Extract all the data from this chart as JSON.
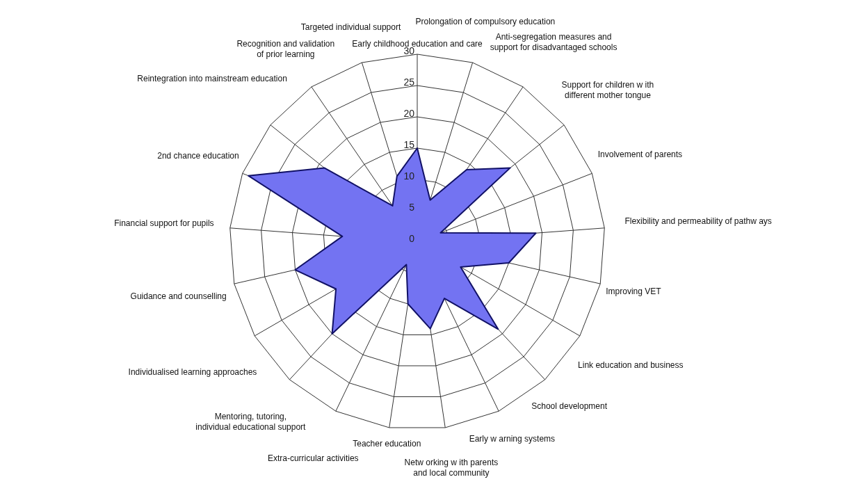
{
  "chart_data": {
    "type": "radar",
    "categories": [
      "Early childhood education and care",
      "Prolongation of compulsory education",
      "Anti-segregation measures and support for disadvantaged schools",
      "Support for children w ith different mother tongue",
      "Involvement of parents",
      "Flexibility and permeability of pathw ays",
      "Improving VET",
      "Link education and business",
      "School development",
      "Early w arning systems",
      "Netw orking w ith parents and local community",
      "Teacher education",
      "Extra-curricular activities",
      "Mentoring, tutoring, individual educational support",
      "Individualised learning approaches",
      "Guidance and counselling",
      "Financial support for pupils",
      "2nd chance education",
      "Reintegration into mainstream education",
      "Recognition and validation of prior learning",
      "Targeted individual support"
    ],
    "series": [
      {
        "color": "#7373f2",
        "values": [
          15,
          7,
          14,
          19,
          4,
          19,
          15,
          8,
          19,
          10,
          14,
          10,
          4,
          20,
          15,
          20,
          12,
          29,
          19,
          7,
          11
        ]
      }
    ],
    "ylim": [
      0,
      30
    ],
    "yticks": [
      0,
      5,
      10,
      15,
      20,
      25,
      30
    ],
    "grid": true
  }
}
